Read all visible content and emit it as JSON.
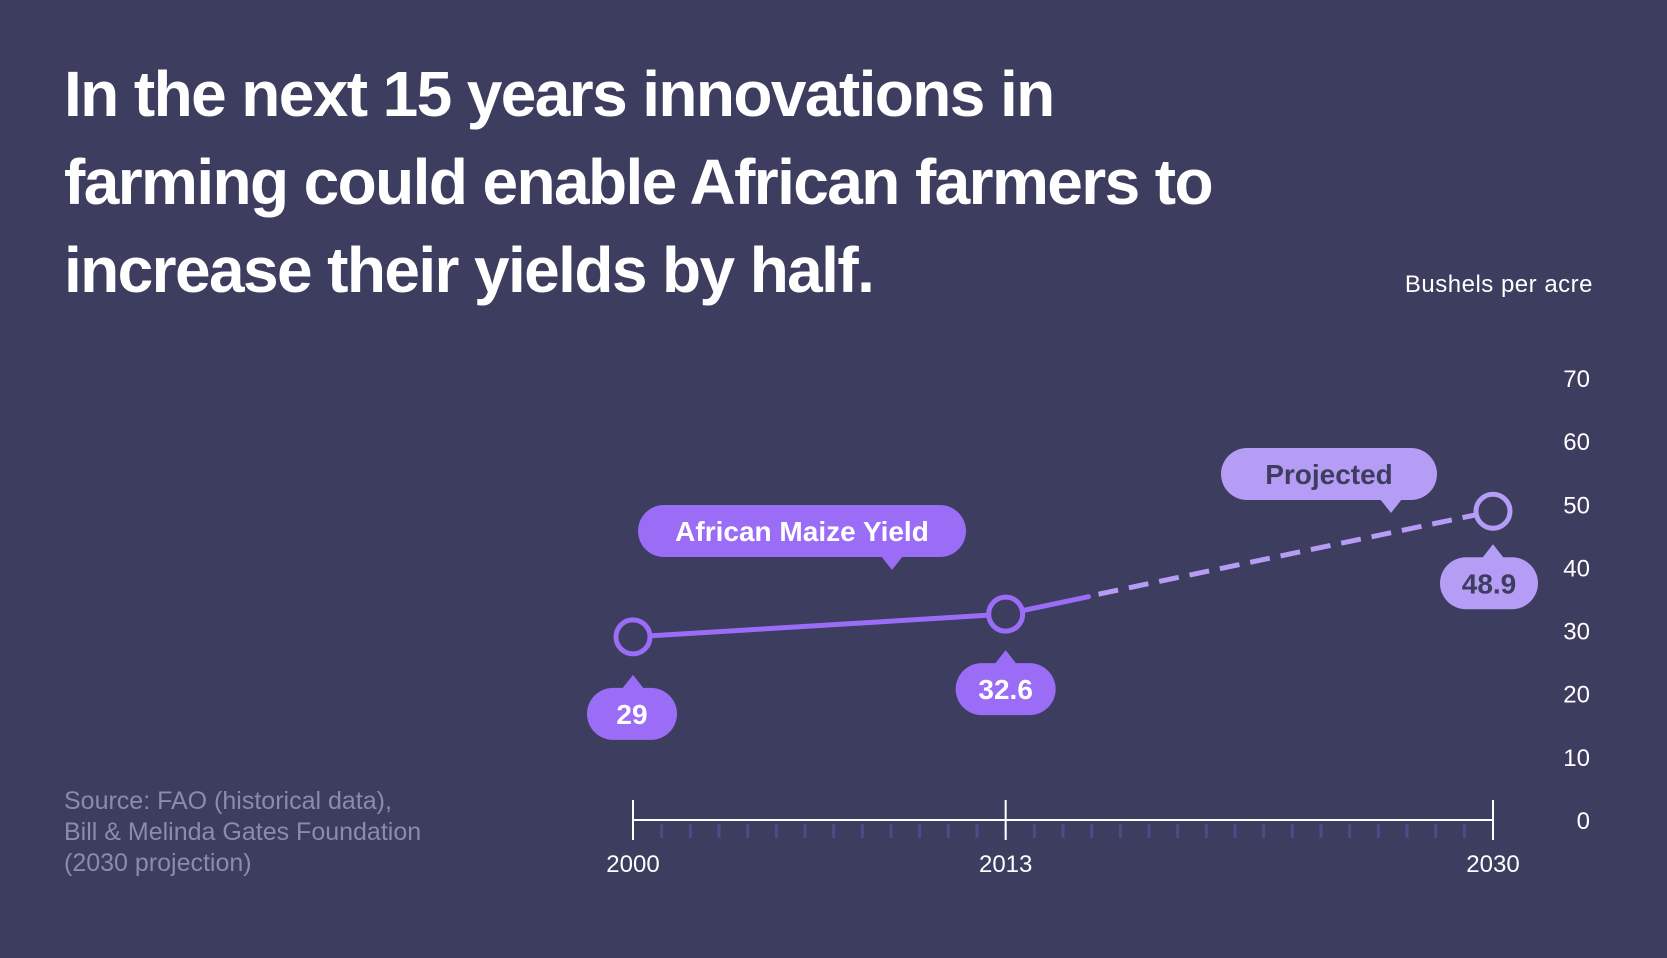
{
  "headline": "In the next 15 years innovations in farming could enable African farmers to increase their yields by half.",
  "source_lines": [
    "Source: FAO (historical data),",
    "Bill & Melinda Gates Foundation",
    "(2030 projection)"
  ],
  "colors": {
    "background": "#3c3d5f",
    "historical": "#9b6cf6",
    "projected": "#b59cf4",
    "axis": "#ffffff",
    "projected_text": "#3c3d5f",
    "source_text": "#8b8cab"
  },
  "chart_data": {
    "type": "line",
    "title": "In the next 15 years innovations in farming could enable African farmers to increase their yields by half.",
    "ylabel": "Bushels per acre",
    "xlabel": "",
    "xlim": [
      2000,
      2030
    ],
    "ylim": [
      0,
      70
    ],
    "yticks": [
      "0",
      "10",
      "20",
      "30",
      "40",
      "50",
      "60",
      "70"
    ],
    "xticks": [
      "2000",
      "2013",
      "2030"
    ],
    "x": [
      2000,
      2013,
      2030
    ],
    "series": [
      {
        "name": "African Maize Yield",
        "points": [
          [
            2000,
            29
          ],
          [
            2013,
            32.6
          ]
        ],
        "style": "solid"
      },
      {
        "name": "Projected",
        "points": [
          [
            2013,
            32.6
          ],
          [
            2030,
            48.9
          ]
        ],
        "style": "dashed"
      }
    ],
    "data_labels": [
      "29",
      "32.6",
      "48.9"
    ],
    "grid": false,
    "legend": "inline-callouts"
  }
}
